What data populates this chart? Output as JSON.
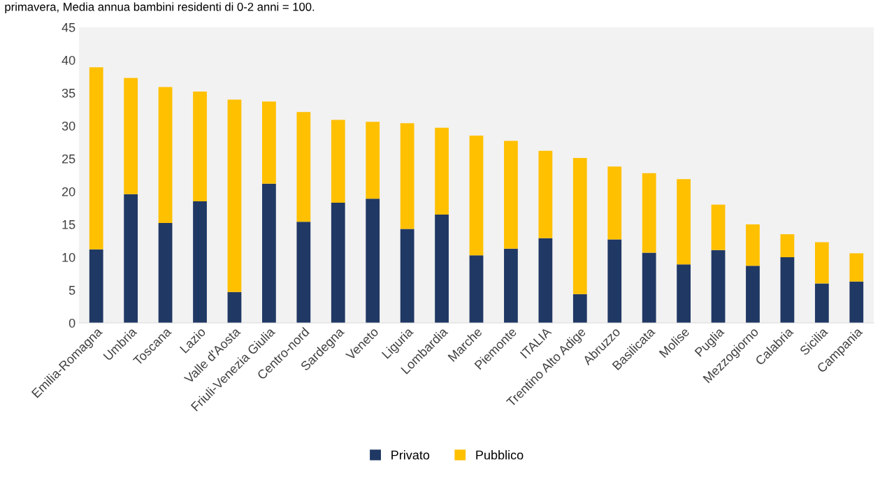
{
  "chart_data": {
    "type": "bar",
    "stacked": true,
    "title": "primavera, Media annua bambini residenti di 0-2 anni = 100.",
    "categories": [
      "Emilia-Romagna",
      "Umbria",
      "Toscana",
      "Lazio",
      "Valle d'Aosta",
      "Friuli-Venezia Giulia",
      "Centro-nord",
      "Sardegna",
      "Veneto",
      "Liguria",
      "Lombardia",
      "Marche",
      "Piemonte",
      "ITALIA",
      "Trentino Alto Adige",
      "Abruzzo",
      "Basilicata",
      "Molise",
      "Puglia",
      "Mezzogiorno",
      "Calabria",
      "Sicilia",
      "Campania"
    ],
    "series": [
      {
        "name": "Privato",
        "color": "#203864",
        "values": [
          11.2,
          19.6,
          15.2,
          18.5,
          4.7,
          21.2,
          15.4,
          18.3,
          18.9,
          14.3,
          16.5,
          10.3,
          11.3,
          12.9,
          4.4,
          12.7,
          10.7,
          8.9,
          11.1,
          8.7,
          10.0,
          6.0,
          6.3
        ]
      },
      {
        "name": "Pubblico",
        "color": "#ffc000",
        "values": [
          27.7,
          17.7,
          20.7,
          16.7,
          29.3,
          12.5,
          16.7,
          12.6,
          11.7,
          16.1,
          13.2,
          18.2,
          16.4,
          13.3,
          20.7,
          11.1,
          12.1,
          13.0,
          6.9,
          6.3,
          3.5,
          6.3,
          4.3
        ]
      }
    ],
    "ylim": [
      0,
      45
    ],
    "yticks": [
      0,
      5,
      10,
      15,
      20,
      25,
      30,
      35,
      40,
      45
    ],
    "grid": false,
    "legend": "bottom"
  }
}
